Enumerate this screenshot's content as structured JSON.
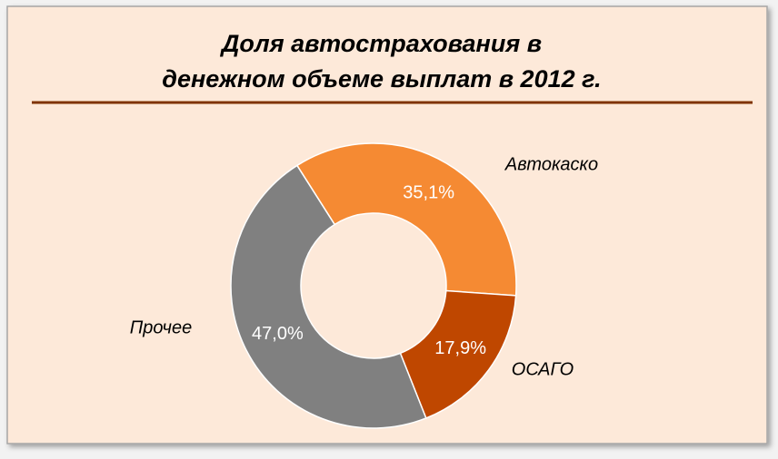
{
  "chart_data": {
    "type": "donut",
    "title": [
      "Доля автострахования в",
      "денежном объеме выплат в 2012 г."
    ],
    "categories": [
      "Автокаско",
      "ОСАГО",
      "Прочее"
    ],
    "values": [
      35.1,
      17.9,
      47.0
    ],
    "value_labels": [
      "35,1%",
      "17,9%",
      "47,0%"
    ],
    "colors": [
      "#f58a33",
      "#bf4700",
      "#808080"
    ]
  }
}
